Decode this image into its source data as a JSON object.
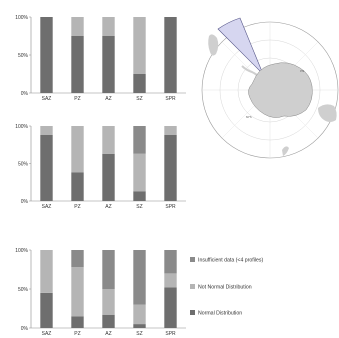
{
  "colors": {
    "normal": "#6e6e6e",
    "not_normal": "#b5b5b5",
    "insufficient": "#8a8a8a",
    "axis": "#8c8c8c",
    "land": "#cfcfcf",
    "sector": "#d6d6f0"
  },
  "legend": {
    "items": [
      {
        "label": "Insufficient data (<4 profiles)",
        "color_key": "insufficient"
      },
      {
        "label": "Not Normal Distribution",
        "color_key": "not_normal"
      },
      {
        "label": "Normal Distribution",
        "color_key": "normal"
      }
    ]
  },
  "chart_data": [
    {
      "type": "bar",
      "stacked": true,
      "categories": [
        "SAZ",
        "PZ",
        "AZ",
        "SZ",
        "SPR"
      ],
      "y_ticks": [
        "0%",
        "50%",
        "100%"
      ],
      "ylim": [
        0,
        100
      ],
      "series": [
        {
          "name": "Normal Distribution",
          "values": [
            100,
            75,
            75,
            25,
            100
          ]
        },
        {
          "name": "Not Normal Distribution",
          "values": [
            0,
            25,
            25,
            75,
            0
          ]
        },
        {
          "name": "Insufficient data (<4 profiles)",
          "values": [
            0,
            0,
            0,
            0,
            0
          ]
        }
      ]
    },
    {
      "type": "bar",
      "stacked": true,
      "categories": [
        "SAZ",
        "PZ",
        "AZ",
        "SZ",
        "SPR"
      ],
      "y_ticks": [
        "0%",
        "50%",
        "100%"
      ],
      "ylim": [
        0,
        100
      ],
      "series": [
        {
          "name": "Normal Distribution",
          "values": [
            88,
            38,
            63,
            13,
            88
          ]
        },
        {
          "name": "Not Normal Distribution",
          "values": [
            12,
            62,
            37,
            50,
            12
          ]
        },
        {
          "name": "Insufficient data (<4 profiles)",
          "values": [
            0,
            0,
            0,
            37,
            0
          ]
        }
      ]
    },
    {
      "type": "bar",
      "stacked": true,
      "categories": [
        "SAZ",
        "PZ",
        "AZ",
        "SZ",
        "SPR"
      ],
      "y_ticks": [
        "0%",
        "50%",
        "100%"
      ],
      "ylim": [
        0,
        100
      ],
      "series": [
        {
          "name": "Normal Distribution",
          "values": [
            45,
            15,
            17,
            5,
            52
          ]
        },
        {
          "name": "Not Normal Distribution",
          "values": [
            55,
            63,
            33,
            25,
            18
          ]
        },
        {
          "name": "Insufficient data (<4 profiles)",
          "values": [
            0,
            22,
            50,
            70,
            30
          ]
        }
      ]
    }
  ]
}
